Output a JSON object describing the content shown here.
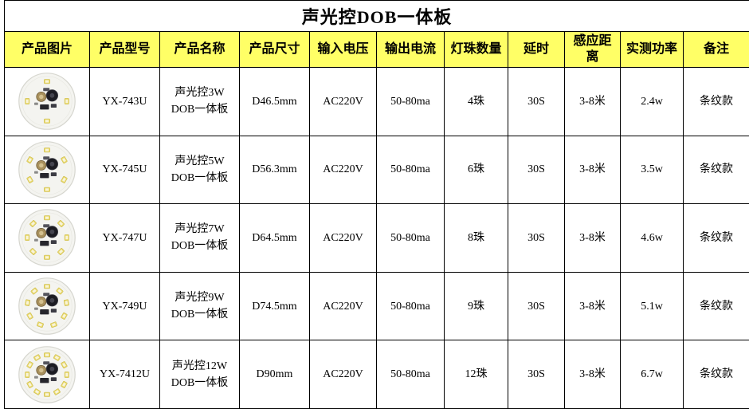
{
  "title": "声光控DOB一体板",
  "colors": {
    "header_bg": "#ffff66",
    "border": "#000000",
    "led": "#e9d96a",
    "board": "#f4f4f0"
  },
  "columns": [
    "产品图片",
    "产品型号",
    "产品名称",
    "产品尺寸",
    "输入电压",
    "输出电流",
    "灯珠数量",
    "延时",
    "感应距离",
    "实测功率",
    "备注"
  ],
  "rows": [
    {
      "image": "round-led-board",
      "leds": 4,
      "model": "YX-743U",
      "name": "声光控3W DOB一体板",
      "size": "D46.5mm",
      "input_voltage": "AC220V",
      "output_current": "50-80ma",
      "led_count": "4珠",
      "delay": "30S",
      "sensing_distance": "3-8米",
      "measured_power": "2.4w",
      "remark": "条纹款"
    },
    {
      "image": "round-led-board",
      "leds": 6,
      "model": "YX-745U",
      "name": "声光控5W DOB一体板",
      "size": "D56.3mm",
      "input_voltage": "AC220V",
      "output_current": "50-80ma",
      "led_count": "6珠",
      "delay": "30S",
      "sensing_distance": "3-8米",
      "measured_power": "3.5w",
      "remark": "条纹款"
    },
    {
      "image": "round-led-board",
      "leds": 8,
      "model": "YX-747U",
      "name": "声光控7W DOB一体板",
      "size": "D64.5mm",
      "input_voltage": "AC220V",
      "output_current": "50-80ma",
      "led_count": "8珠",
      "delay": "30S",
      "sensing_distance": "3-8米",
      "measured_power": "4.6w",
      "remark": "条纹款"
    },
    {
      "image": "round-led-board",
      "leds": 9,
      "model": "YX-749U",
      "name": "声光控9W DOB一体板",
      "size": "D74.5mm",
      "input_voltage": "AC220V",
      "output_current": "50-80ma",
      "led_count": "9珠",
      "delay": "30S",
      "sensing_distance": "3-8米",
      "measured_power": "5.1w",
      "remark": "条纹款"
    },
    {
      "image": "round-led-board",
      "leds": 12,
      "model": "YX-7412U",
      "name": "声光控12W DOB一体板",
      "size": "D90mm",
      "input_voltage": "AC220V",
      "output_current": "50-80ma",
      "led_count": "12珠",
      "delay": "30S",
      "sensing_distance": "3-8米",
      "measured_power": "6.7w",
      "remark": "条纹款"
    }
  ]
}
